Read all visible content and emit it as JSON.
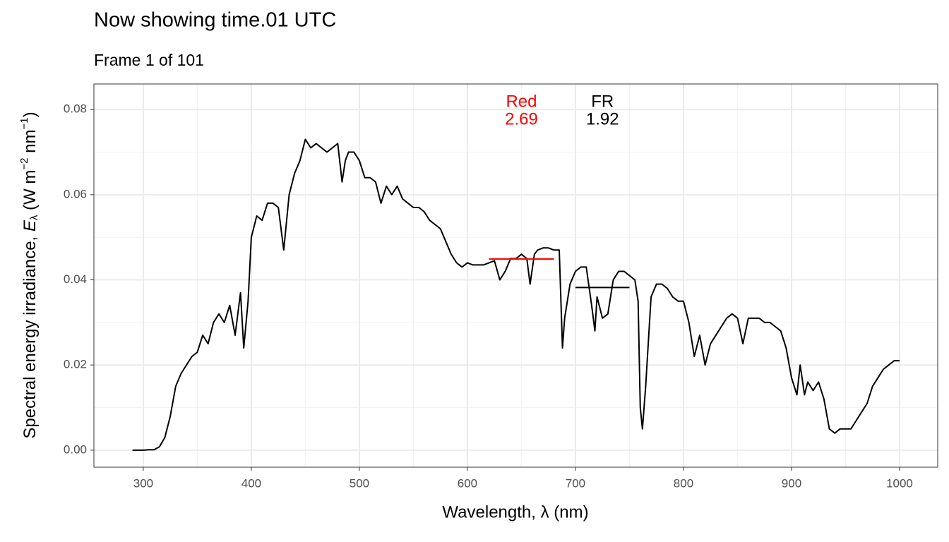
{
  "chart_data": {
    "type": "line",
    "title": "Now showing time.01 UTC",
    "subtitle": "Frame 1 of 101",
    "xlabel": "Wavelength, λ (nm)",
    "ylabel": {
      "text": "Spectral energy irradiance, ",
      "symbol": "E",
      "sub": "λ",
      "unit": " (W m",
      "exp1": "−2",
      "mid": " nm",
      "exp2": "−1",
      "close": ")"
    },
    "xlim": [
      254.3,
      1035.3
    ],
    "ylim": [
      -0.004,
      0.086
    ],
    "xticks": [
      300,
      400,
      500,
      600,
      700,
      800,
      900,
      1000
    ],
    "yticks": [
      {
        "value": 0,
        "label": "0.00"
      },
      0.02,
      0.04,
      0.06,
      0.08
    ],
    "xminor": [
      350,
      450,
      550,
      650,
      750,
      850,
      950
    ],
    "yminor": [
      0.01,
      0.03,
      0.05,
      0.07
    ],
    "grid": true,
    "series": [
      {
        "name": "spectrum",
        "color": "#000000",
        "x": [
          290,
          295,
          300,
          305,
          310,
          315,
          320,
          325,
          330,
          335,
          340,
          345,
          350,
          355,
          360,
          365,
          370,
          375,
          380,
          385,
          390,
          393,
          397,
          400,
          405,
          410,
          415,
          420,
          425,
          430,
          435,
          440,
          445,
          450,
          455,
          460,
          465,
          470,
          475,
          480,
          484,
          487,
          490,
          495,
          500,
          505,
          510,
          515,
          520,
          525,
          530,
          535,
          540,
          545,
          550,
          555,
          560,
          565,
          570,
          575,
          580,
          585,
          590,
          595,
          600,
          605,
          610,
          615,
          620,
          625,
          630,
          635,
          640,
          645,
          650,
          655,
          658,
          662,
          665,
          670,
          675,
          680,
          685,
          688,
          690,
          695,
          700,
          705,
          710,
          715,
          718,
          720,
          725,
          730,
          735,
          740,
          745,
          750,
          755,
          758,
          760,
          762,
          765,
          770,
          775,
          780,
          785,
          790,
          795,
          800,
          805,
          810,
          815,
          820,
          825,
          830,
          835,
          840,
          845,
          850,
          855,
          860,
          865,
          870,
          875,
          880,
          885,
          890,
          895,
          900,
          905,
          908,
          912,
          915,
          920,
          925,
          930,
          935,
          940,
          945,
          950,
          955,
          960,
          965,
          970,
          975,
          980,
          985,
          990,
          995,
          1000
        ],
        "values": [
          0,
          0,
          0,
          0.0001,
          0.0001,
          0.0008,
          0.003,
          0.008,
          0.015,
          0.018,
          0.02,
          0.022,
          0.023,
          0.027,
          0.025,
          0.03,
          0.032,
          0.03,
          0.034,
          0.027,
          0.037,
          0.024,
          0.035,
          0.05,
          0.055,
          0.054,
          0.058,
          0.058,
          0.057,
          0.047,
          0.06,
          0.065,
          0.068,
          0.073,
          0.071,
          0.072,
          0.071,
          0.07,
          0.071,
          0.072,
          0.063,
          0.068,
          0.07,
          0.07,
          0.068,
          0.064,
          0.064,
          0.063,
          0.058,
          0.062,
          0.06,
          0.062,
          0.059,
          0.058,
          0.057,
          0.057,
          0.056,
          0.054,
          0.053,
          0.052,
          0.049,
          0.046,
          0.044,
          0.043,
          0.044,
          0.0435,
          0.0435,
          0.0435,
          0.044,
          0.0445,
          0.04,
          0.042,
          0.045,
          0.045,
          0.046,
          0.045,
          0.039,
          0.046,
          0.047,
          0.0475,
          0.0475,
          0.047,
          0.047,
          0.024,
          0.031,
          0.039,
          0.042,
          0.043,
          0.043,
          0.034,
          0.028,
          0.036,
          0.031,
          0.032,
          0.04,
          0.042,
          0.042,
          0.041,
          0.04,
          0.035,
          0.01,
          0.005,
          0.015,
          0.036,
          0.039,
          0.039,
          0.038,
          0.036,
          0.035,
          0.035,
          0.03,
          0.022,
          0.027,
          0.02,
          0.025,
          0.027,
          0.029,
          0.031,
          0.032,
          0.031,
          0.025,
          0.031,
          0.031,
          0.031,
          0.03,
          0.03,
          0.029,
          0.028,
          0.024,
          0.017,
          0.013,
          0.02,
          0.013,
          0.016,
          0.014,
          0.016,
          0.012,
          0.005,
          0.004,
          0.005,
          0.005,
          0.005,
          0.007,
          0.009,
          0.011,
          0.015,
          0.017,
          0.019,
          0.02,
          0.021,
          0.021
        ]
      }
    ],
    "bands": [
      {
        "name": "Red",
        "value": 2.69,
        "color": "#ff0000",
        "x": [
          620,
          680
        ],
        "level": 0.0449
      },
      {
        "name": "FR",
        "value": 1.92,
        "color": "#000000",
        "x": [
          700,
          750
        ],
        "level": 0.0382
      }
    ]
  }
}
